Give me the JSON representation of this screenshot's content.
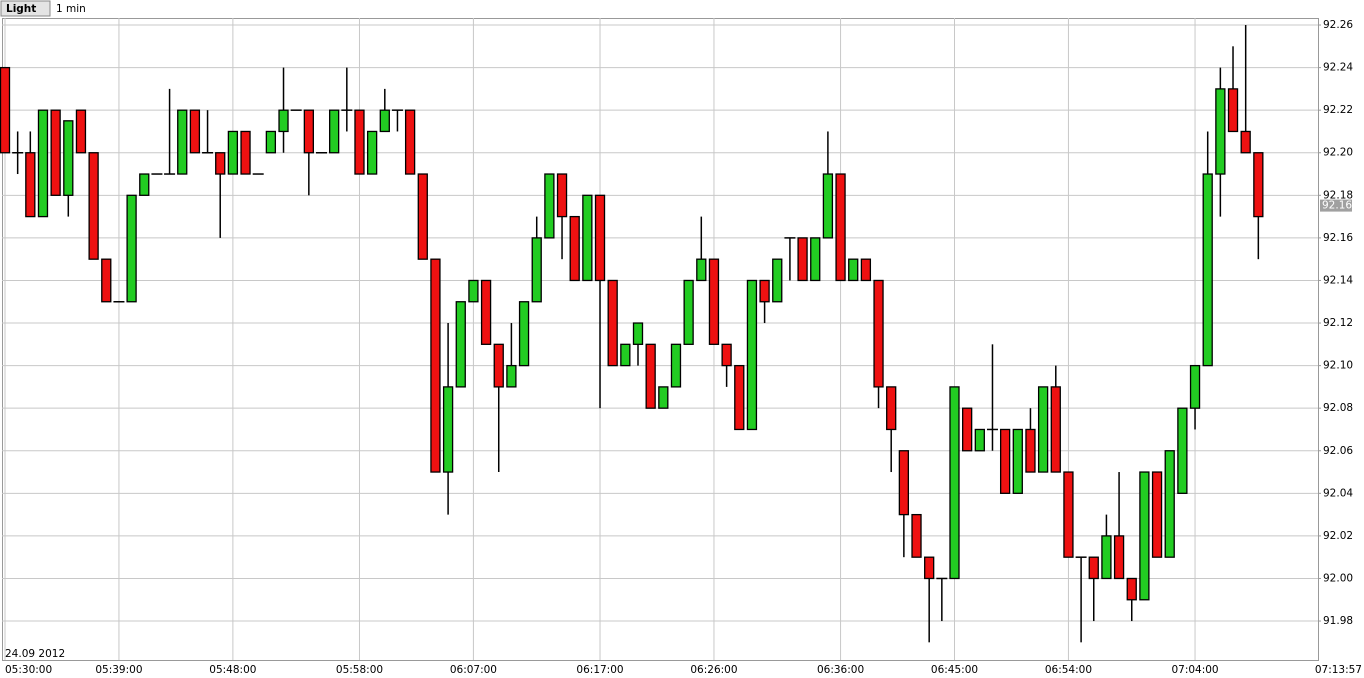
{
  "chart_data": {
    "type": "candlestick",
    "period_button": "Light",
    "period": "1 min",
    "date_label": "24.09 2012",
    "x_end_label": "07:13:57",
    "current_price_label": "92.16",
    "up_color": "#22cc22",
    "down_color": "#ee1111",
    "grid": true,
    "categories": [
      "05:30:00",
      null,
      null,
      null,
      null,
      null,
      null,
      null,
      null,
      "05:39:00",
      null,
      null,
      null,
      null,
      null,
      null,
      null,
      null,
      "05:48:00",
      null,
      null,
      null,
      null,
      null,
      null,
      null,
      null,
      null,
      "05:58:00",
      null,
      null,
      null,
      null,
      null,
      null,
      null,
      null,
      "06:07:00",
      null,
      null,
      null,
      null,
      null,
      null,
      null,
      null,
      null,
      "06:17:00",
      null,
      null,
      null,
      null,
      null,
      null,
      null,
      null,
      "06:26:00",
      null,
      null,
      null,
      null,
      null,
      null,
      null,
      null,
      null,
      "06:36:00",
      null,
      null,
      null,
      null,
      null,
      null,
      null,
      null,
      "06:45:00",
      null,
      null,
      null,
      null,
      null,
      null,
      null,
      null,
      "06:54:00",
      null,
      null,
      null,
      null,
      null,
      null,
      null,
      null,
      null,
      "07:04:00",
      null,
      null,
      null,
      null,
      null
    ],
    "open": [
      92.24,
      92.2,
      92.2,
      92.17,
      92.22,
      92.18,
      92.22,
      92.2,
      92.15,
      92.13,
      92.13,
      92.18,
      92.19,
      92.19,
      92.19,
      92.22,
      92.2,
      92.2,
      92.19,
      92.21,
      92.19,
      92.2,
      92.21,
      92.22,
      92.22,
      92.2,
      92.2,
      92.22,
      92.22,
      92.19,
      92.21,
      92.22,
      92.22,
      92.19,
      92.15,
      92.05,
      92.09,
      92.13,
      92.14,
      92.11,
      92.09,
      92.1,
      92.13,
      92.16,
      92.19,
      92.17,
      92.14,
      92.18,
      92.14,
      92.1,
      92.11,
      92.11,
      92.08,
      92.09,
      92.11,
      92.14,
      92.15,
      92.11,
      92.1,
      92.07,
      92.14,
      92.13,
      92.16,
      92.16,
      92.14,
      92.16,
      92.19,
      92.14,
      92.15,
      92.14,
      92.09,
      92.06,
      92.03,
      92.01,
      92.0,
      92.0,
      92.08,
      92.06,
      92.07,
      92.07,
      92.04,
      92.07,
      92.05,
      92.09,
      92.05,
      92.01,
      92.01,
      92.0,
      92.02,
      92.0,
      91.99,
      92.05,
      92.01,
      92.04,
      92.08,
      92.1,
      92.19,
      92.23,
      92.21,
      92.2
    ],
    "high": [
      92.24,
      92.21,
      92.21,
      92.22,
      92.22,
      92.215,
      92.22,
      92.2,
      92.15,
      92.13,
      92.18,
      92.19,
      92.19,
      92.23,
      92.22,
      92.22,
      92.22,
      92.2,
      92.21,
      92.21,
      92.19,
      92.21,
      92.24,
      92.22,
      92.22,
      92.2,
      92.22,
      92.24,
      92.22,
      92.21,
      92.23,
      92.22,
      92.22,
      92.19,
      92.15,
      92.12,
      92.13,
      92.14,
      92.14,
      92.11,
      92.12,
      92.13,
      92.17,
      92.19,
      92.19,
      92.17,
      92.18,
      92.18,
      92.14,
      92.11,
      92.12,
      92.11,
      92.09,
      92.11,
      92.14,
      92.17,
      92.15,
      92.11,
      92.1,
      92.14,
      92.14,
      92.15,
      92.16,
      92.16,
      92.16,
      92.21,
      92.19,
      92.15,
      92.15,
      92.14,
      92.09,
      92.06,
      92.03,
      92.01,
      92.0,
      92.09,
      92.08,
      92.07,
      92.11,
      92.07,
      92.07,
      92.08,
      92.09,
      92.1,
      92.05,
      92.01,
      92.01,
      92.03,
      92.05,
      92.0,
      92.05,
      92.05,
      92.06,
      92.08,
      92.1,
      92.21,
      92.24,
      92.25,
      92.26,
      92.2
    ],
    "low": [
      92.2,
      92.19,
      92.17,
      92.17,
      92.18,
      92.17,
      92.2,
      92.15,
      92.13,
      92.13,
      92.13,
      92.18,
      92.19,
      92.19,
      92.19,
      92.2,
      92.2,
      92.16,
      92.19,
      92.19,
      92.19,
      92.2,
      92.2,
      92.22,
      92.18,
      92.2,
      92.2,
      92.21,
      92.19,
      92.19,
      92.21,
      92.21,
      92.19,
      92.15,
      92.05,
      92.03,
      92.09,
      92.13,
      92.11,
      92.05,
      92.09,
      92.1,
      92.13,
      92.16,
      92.15,
      92.14,
      92.14,
      92.08,
      92.1,
      92.1,
      92.1,
      92.08,
      92.08,
      92.09,
      92.11,
      92.14,
      92.11,
      92.09,
      92.07,
      92.07,
      92.12,
      92.13,
      92.14,
      92.14,
      92.14,
      92.16,
      92.14,
      92.14,
      92.14,
      92.08,
      92.05,
      92.01,
      92.01,
      91.97,
      91.98,
      92.0,
      92.06,
      92.06,
      92.06,
      92.04,
      92.04,
      92.05,
      92.05,
      92.05,
      92.01,
      91.97,
      91.98,
      92.0,
      92.0,
      91.98,
      91.99,
      92.01,
      92.01,
      92.04,
      92.07,
      92.1,
      92.17,
      92.21,
      92.2,
      92.15
    ],
    "close": [
      92.2,
      92.2,
      92.17,
      92.22,
      92.18,
      92.215,
      92.2,
      92.15,
      92.13,
      92.13,
      92.18,
      92.19,
      92.19,
      92.19,
      92.22,
      92.2,
      92.2,
      92.19,
      92.21,
      92.19,
      92.19,
      92.21,
      92.22,
      92.22,
      92.2,
      92.2,
      92.22,
      92.22,
      92.19,
      92.21,
      92.22,
      92.22,
      92.19,
      92.15,
      92.05,
      92.09,
      92.13,
      92.14,
      92.11,
      92.09,
      92.1,
      92.13,
      92.16,
      92.19,
      92.17,
      92.14,
      92.18,
      92.14,
      92.1,
      92.11,
      92.12,
      92.08,
      92.09,
      92.11,
      92.14,
      92.15,
      92.11,
      92.1,
      92.07,
      92.14,
      92.13,
      92.15,
      92.16,
      92.14,
      92.16,
      92.19,
      92.14,
      92.15,
      92.14,
      92.09,
      92.07,
      92.03,
      92.01,
      92.0,
      92.0,
      92.09,
      92.06,
      92.07,
      92.07,
      92.04,
      92.07,
      92.05,
      92.09,
      92.05,
      92.01,
      92.01,
      92.0,
      92.02,
      92.0,
      91.99,
      92.05,
      92.01,
      92.06,
      92.08,
      92.1,
      92.19,
      92.23,
      92.21,
      92.2,
      92.17
    ],
    "ylim": [
      91.9617,
      92.2633
    ],
    "yticks": [
      91.98,
      {
        "value": 92,
        "label": "92.00"
      },
      92.02,
      92.04,
      92.06,
      92.08,
      {
        "value": 92.1,
        "label": "92.10"
      },
      92.12,
      92.14,
      92.16,
      92.18,
      {
        "value": 92.2,
        "label": "92.20"
      },
      92.22,
      92.24,
      92.26
    ]
  }
}
